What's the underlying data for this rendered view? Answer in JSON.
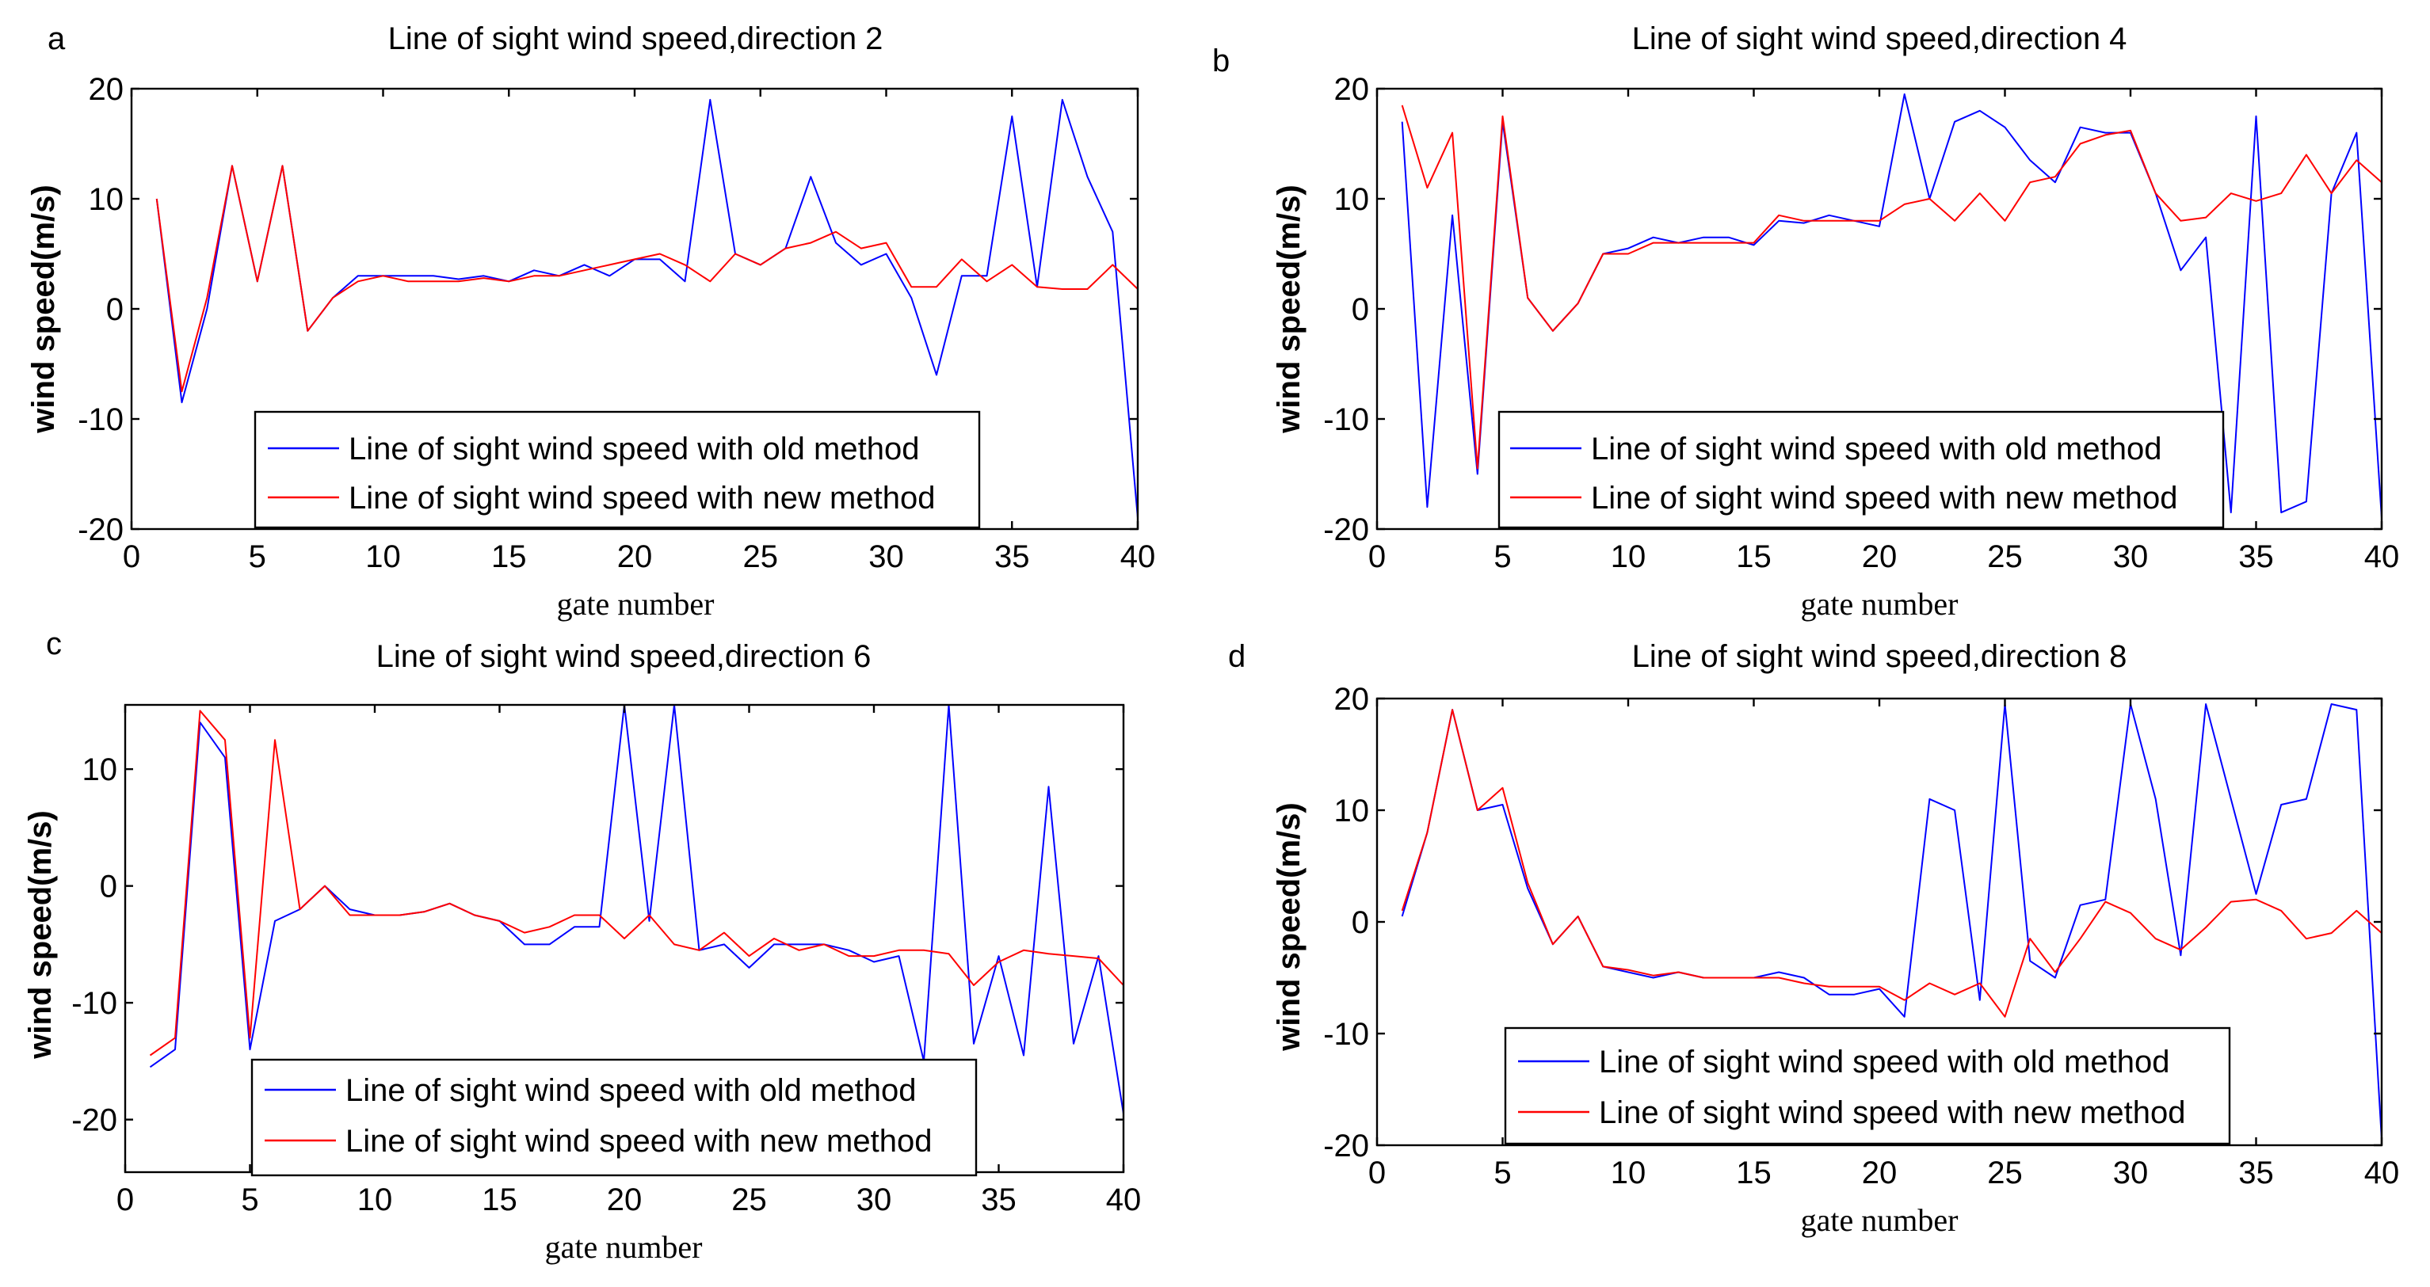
{
  "colors": {
    "old": "#0000ff",
    "new": "#ff0000"
  },
  "chart_data": [
    {
      "type": "line",
      "panel_label": "a",
      "title": "Line of sight wind speed,direction 2",
      "xlabel": "gate number",
      "ylabel": "wind speed(m/s)",
      "xlim": [
        0,
        40
      ],
      "ylim": [
        -20,
        20
      ],
      "xticks": [
        0,
        5,
        10,
        15,
        20,
        25,
        30,
        35,
        40
      ],
      "yticks": [
        -20,
        -10,
        0,
        10,
        20
      ],
      "x": [
        1,
        2,
        3,
        4,
        5,
        6,
        7,
        8,
        9,
        10,
        11,
        12,
        13,
        14,
        15,
        16,
        17,
        18,
        19,
        20,
        21,
        22,
        23,
        24,
        25,
        26,
        27,
        28,
        29,
        30,
        31,
        32,
        33,
        34,
        35,
        36,
        37,
        38,
        39,
        40
      ],
      "series": [
        {
          "name": "Line of sight wind speed with old method",
          "color_key": "old",
          "values": [
            10,
            -8.5,
            0,
            13,
            2.5,
            13,
            -2,
            1,
            3,
            3,
            3,
            3,
            2.7,
            3,
            2.5,
            3.5,
            3,
            4,
            3,
            4.5,
            4.5,
            2.5,
            19,
            5,
            4,
            5.5,
            12,
            6,
            4,
            5,
            1,
            -6,
            3,
            3,
            17.5,
            2,
            19,
            12,
            7,
            -19
          ]
        },
        {
          "name": "Line of sight wind speed with new method",
          "color_key": "new",
          "values": [
            10,
            -7.5,
            1,
            13,
            2.5,
            13,
            -2,
            1,
            2.5,
            3,
            2.5,
            2.5,
            2.5,
            2.8,
            2.5,
            3,
            3,
            3.5,
            4,
            4.5,
            5,
            4,
            2.5,
            5,
            4,
            5.5,
            6,
            7,
            5.5,
            6,
            2,
            2,
            4.5,
            2.5,
            4,
            2,
            1.8,
            1.8,
            4,
            1.8
          ]
        }
      ]
    },
    {
      "type": "line",
      "panel_label": "b",
      "title": "Line of sight wind speed,direction 4",
      "xlabel": "gate number",
      "ylabel": "wind speed(m/s)",
      "xlim": [
        0,
        40
      ],
      "ylim": [
        -20,
        20
      ],
      "xticks": [
        0,
        5,
        10,
        15,
        20,
        25,
        30,
        35,
        40
      ],
      "yticks": [
        -20,
        -10,
        0,
        10,
        20
      ],
      "x": [
        1,
        2,
        3,
        4,
        5,
        6,
        7,
        8,
        9,
        10,
        11,
        12,
        13,
        14,
        15,
        16,
        17,
        18,
        19,
        20,
        21,
        22,
        23,
        24,
        25,
        26,
        27,
        28,
        29,
        30,
        31,
        32,
        33,
        34,
        35,
        36,
        37,
        38,
        39,
        40
      ],
      "series": [
        {
          "name": "Line of sight wind speed with old method",
          "color_key": "old",
          "values": [
            17,
            -18,
            8.5,
            -15,
            17,
            1,
            -2,
            0.5,
            5,
            5.5,
            6.5,
            6,
            6.5,
            6.5,
            5.8,
            8,
            7.8,
            8.5,
            8,
            7.5,
            19.5,
            10,
            17,
            18,
            16.5,
            13.5,
            11.5,
            16.5,
            16,
            16,
            10.5,
            3.5,
            6.5,
            -18.5,
            17.5,
            -18.5,
            -17.5,
            10.5,
            16,
            -19
          ]
        },
        {
          "name": "Line of sight wind speed with new method",
          "color_key": "new",
          "values": [
            18.5,
            11,
            16,
            -14.5,
            17.5,
            1,
            -2,
            0.5,
            5,
            5,
            6,
            6,
            6,
            6,
            6,
            8.5,
            8,
            8,
            8,
            8,
            9.5,
            10,
            8,
            10.5,
            8,
            11.5,
            12,
            15,
            15.8,
            16.2,
            10.5,
            8,
            8.3,
            10.5,
            9.8,
            10.5,
            14,
            10.5,
            13.5,
            11.5
          ]
        }
      ]
    },
    {
      "type": "line",
      "panel_label": "c",
      "title": "Line of sight wind speed,direction 6",
      "xlabel": "gate number",
      "ylabel": "wind speed(m/s)",
      "xlim": [
        0,
        40
      ],
      "ylim": [
        -24.5,
        15.5
      ],
      "xticks": [
        0,
        5,
        10,
        15,
        20,
        25,
        30,
        35,
        40
      ],
      "yticks": [
        -20,
        -10,
        0,
        10
      ],
      "x": [
        1,
        2,
        3,
        4,
        5,
        6,
        7,
        8,
        9,
        10,
        11,
        12,
        13,
        14,
        15,
        16,
        17,
        18,
        19,
        20,
        21,
        22,
        23,
        24,
        25,
        26,
        27,
        28,
        29,
        30,
        31,
        32,
        33,
        34,
        35,
        36,
        37,
        38,
        39,
        40
      ],
      "series": [
        {
          "name": "Line of sight wind speed with old method",
          "color_key": "old",
          "values": [
            -15.5,
            -14,
            14,
            11,
            -14,
            -3,
            -2,
            0,
            -2,
            -2.5,
            -2.5,
            -2.2,
            -1.5,
            -2.5,
            -3,
            -5,
            -5,
            -3.5,
            -3.5,
            15.5,
            -3,
            15.5,
            -5.5,
            -5,
            -7,
            -5,
            -5,
            -5,
            -5.5,
            -6.5,
            -6,
            -15,
            15.5,
            -13.5,
            -6,
            -14.5,
            8.5,
            -13.5,
            -6,
            -19.5
          ]
        },
        {
          "name": "Line of sight wind speed with new method",
          "color_key": "new",
          "values": [
            -14.5,
            -13,
            15,
            12.5,
            -13,
            12.5,
            -2,
            0,
            -2.5,
            -2.5,
            -2.5,
            -2.2,
            -1.5,
            -2.5,
            -3,
            -4,
            -3.5,
            -2.5,
            -2.5,
            -4.5,
            -2.5,
            -5,
            -5.5,
            -4,
            -6,
            -4.5,
            -5.5,
            -5,
            -6,
            -6,
            -5.5,
            -5.5,
            -5.8,
            -8.5,
            -6.5,
            -5.5,
            -5.8,
            -6,
            -6.2,
            -8.5
          ]
        }
      ]
    },
    {
      "type": "line",
      "panel_label": "d",
      "title": "Line of sight wind speed,direction 8",
      "xlabel": "gate number",
      "ylabel": "wind speed(m/s)",
      "xlim": [
        0,
        40
      ],
      "ylim": [
        -20,
        20
      ],
      "xticks": [
        0,
        5,
        10,
        15,
        20,
        25,
        30,
        35,
        40
      ],
      "yticks": [
        -20,
        -10,
        0,
        10,
        20
      ],
      "x": [
        1,
        2,
        3,
        4,
        5,
        6,
        7,
        8,
        9,
        10,
        11,
        12,
        13,
        14,
        15,
        16,
        17,
        18,
        19,
        20,
        21,
        22,
        23,
        24,
        25,
        26,
        27,
        28,
        29,
        30,
        31,
        32,
        33,
        34,
        35,
        36,
        37,
        38,
        39,
        40
      ],
      "series": [
        {
          "name": "Line of sight wind speed with old method",
          "color_key": "old",
          "values": [
            0.5,
            8,
            19,
            10,
            10.5,
            3,
            -2,
            0.5,
            -4,
            -4.5,
            -5,
            -4.5,
            -5,
            -5,
            -5,
            -4.5,
            -5,
            -6.5,
            -6.5,
            -6,
            -8.5,
            11,
            10,
            -7,
            19.5,
            -3.5,
            -5,
            1.5,
            2,
            19.5,
            11,
            -3,
            19.5,
            11,
            2.5,
            10.5,
            11,
            19.5,
            19,
            -19.5
          ]
        },
        {
          "name": "Line of sight wind speed with new method",
          "color_key": "new",
          "values": [
            1,
            8,
            19,
            10,
            12,
            3.5,
            -2,
            0.5,
            -4,
            -4.3,
            -4.8,
            -4.5,
            -5,
            -5,
            -5,
            -5,
            -5.5,
            -5.8,
            -5.8,
            -5.8,
            -7,
            -5.5,
            -6.5,
            -5.5,
            -8.5,
            -1.5,
            -4.5,
            -1.5,
            1.8,
            0.8,
            -1.5,
            -2.5,
            -0.5,
            1.8,
            2,
            1,
            -1.5,
            -1,
            1,
            -1
          ]
        }
      ]
    }
  ]
}
